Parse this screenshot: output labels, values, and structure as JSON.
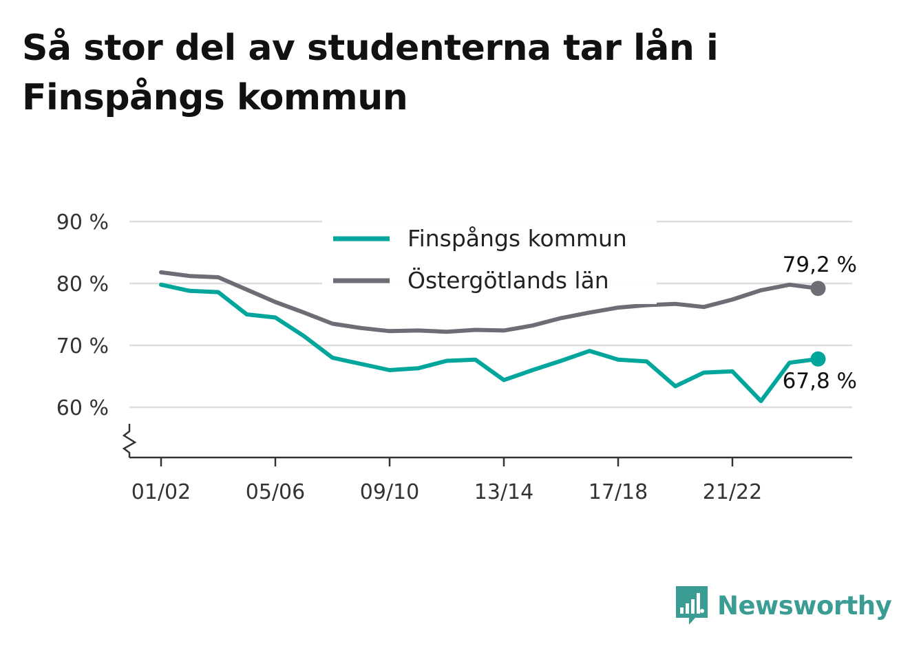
{
  "title": "Så stor del av studenterna tar lån i Finspångs kommun",
  "brand": {
    "name": "Newsworthy",
    "icon": "bar-chart-speech-bubble-logo",
    "color": "#3a9c92"
  },
  "chart_data": {
    "type": "line",
    "title": "Så stor del av studenterna tar lån i Finspångs kommun",
    "x": [
      "01/02",
      "02/03",
      "03/04",
      "04/05",
      "05/06",
      "06/07",
      "07/08",
      "08/09",
      "09/10",
      "10/11",
      "11/12",
      "12/13",
      "13/14",
      "14/15",
      "15/16",
      "16/17",
      "17/18",
      "18/19",
      "19/20",
      "20/21",
      "21/22",
      "22/23",
      "23/24",
      "24/25"
    ],
    "x_tick_labels": [
      "01/02",
      "05/06",
      "09/10",
      "13/14",
      "17/18",
      "21/22"
    ],
    "ylim": [
      52,
      90
    ],
    "y_ticks": [
      60,
      70,
      80,
      90
    ],
    "y_tick_labels": [
      "60 %",
      "70 %",
      "80 %",
      "90 %"
    ],
    "y_axis_break": true,
    "grid": true,
    "legend": "top-center",
    "series": [
      {
        "name": "Finspångs kommun",
        "color": "#00a59b",
        "values": [
          79.8,
          78.8,
          78.6,
          75.0,
          74.5,
          71.5,
          68.0,
          67.0,
          66.0,
          66.3,
          67.5,
          67.7,
          64.4,
          66.0,
          67.5,
          69.1,
          67.7,
          67.4,
          63.4,
          65.6,
          65.8,
          61.0,
          67.2,
          67.8
        ],
        "end_label": "67,8 %",
        "end_label_position": "below"
      },
      {
        "name": "Östergötlands län",
        "color": "#6e6c74",
        "values": [
          81.8,
          81.2,
          81.0,
          79.0,
          77.0,
          75.3,
          73.5,
          72.8,
          72.3,
          72.4,
          72.2,
          72.5,
          72.4,
          73.2,
          74.4,
          75.3,
          76.1,
          76.5,
          76.7,
          76.2,
          77.4,
          78.9,
          79.8,
          79.2
        ],
        "end_label": "79,2 %",
        "end_label_position": "above"
      }
    ]
  }
}
